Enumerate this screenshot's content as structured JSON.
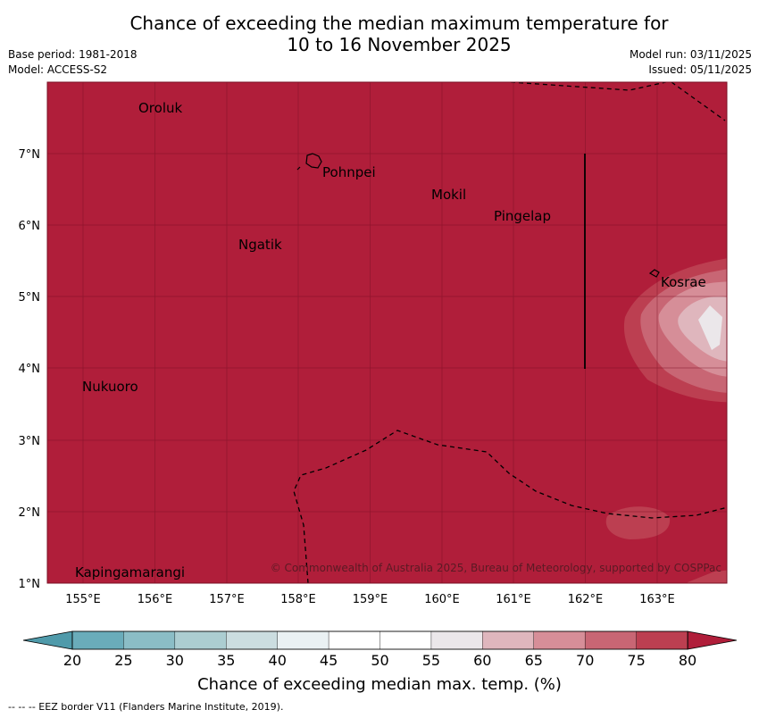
{
  "title_line1": "Chance of exceeding the median maximum temperature for",
  "title_line2": "10 to 16 November 2025",
  "base_period": "Base period: 1981-2018",
  "model": "Model: ACCESS-S2",
  "model_run": "Model run: 03/11/2025",
  "issued": "Issued: 05/11/2025",
  "places": [
    {
      "name": "Oroluk",
      "lon": 155.75,
      "lat": 7.65
    },
    {
      "name": "Pohnpei",
      "lon": 158.35,
      "lat": 6.9
    },
    {
      "name": "Mokil",
      "lon": 159.85,
      "lat": 6.5
    },
    {
      "name": "Pingelap",
      "lon": 160.7,
      "lat": 6.2
    },
    {
      "name": "Ngatik",
      "lon": 157.2,
      "lat": 5.8
    },
    {
      "name": "Kosrae",
      "lon": 163.0,
      "lat": 5.3
    },
    {
      "name": "Nukuoro",
      "lon": 154.95,
      "lat": 3.85
    },
    {
      "name": "Kapingamarangi",
      "lon": 154.9,
      "lat": 1.25
    }
  ],
  "lon_ticks": [
    "155°E",
    "156°E",
    "157°E",
    "158°E",
    "159°E",
    "160°E",
    "161°E",
    "162°E",
    "163°E"
  ],
  "lat_ticks": [
    "1°N",
    "2°N",
    "3°N",
    "4°N",
    "5°N",
    "6°N",
    "7°N"
  ],
  "copyright": "© Commonwealth of Australia 2025, Bureau of Meteorology, supported by COSPPac",
  "colorbar": {
    "label": "Chance of exceeding median max. temp. (%)",
    "ticks": [
      "20",
      "25",
      "30",
      "35",
      "40",
      "45",
      "50",
      "55",
      "60",
      "65",
      "70",
      "75",
      "80"
    ],
    "colors": [
      "#6aacba",
      "#8bbdc6",
      "#accdd1",
      "#cbdde0",
      "#eaf1f3",
      "#ffffff",
      "#ffffff",
      "#ebe7ea",
      "#dfb6bd",
      "#d68e98",
      "#c86674",
      "#bc3f51"
    ],
    "under_color": "#4f9aaa",
    "over_color": "#b01e3a"
  },
  "background_color": "#b01e3a",
  "footnote": "--  --  -- EEZ border V11 (Flanders Marine Institute, 2019)."
}
